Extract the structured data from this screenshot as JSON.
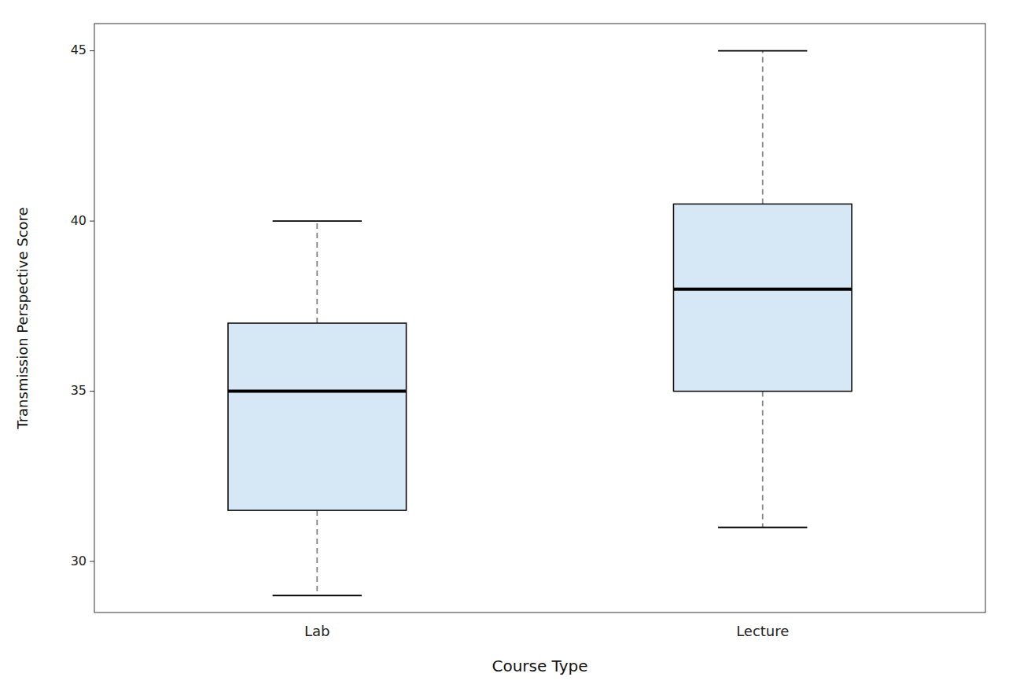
{
  "chart_data": {
    "type": "box",
    "categories": [
      "Lab",
      "Lecture"
    ],
    "whisker_low": [
      29,
      31
    ],
    "q1": [
      31.5,
      35
    ],
    "median": [
      35,
      38
    ],
    "q3": [
      37,
      40.5
    ],
    "whisker_high": [
      40,
      45
    ],
    "color": "#d6e8f5",
    "line_style": "dashed",
    "xlabel": "Course Type",
    "ylabel": "Transmission Perspective Score",
    "ylim": [
      28.5,
      45.8
    ],
    "yticks": [
      30,
      35,
      40,
      45
    ],
    "grid": false
  }
}
